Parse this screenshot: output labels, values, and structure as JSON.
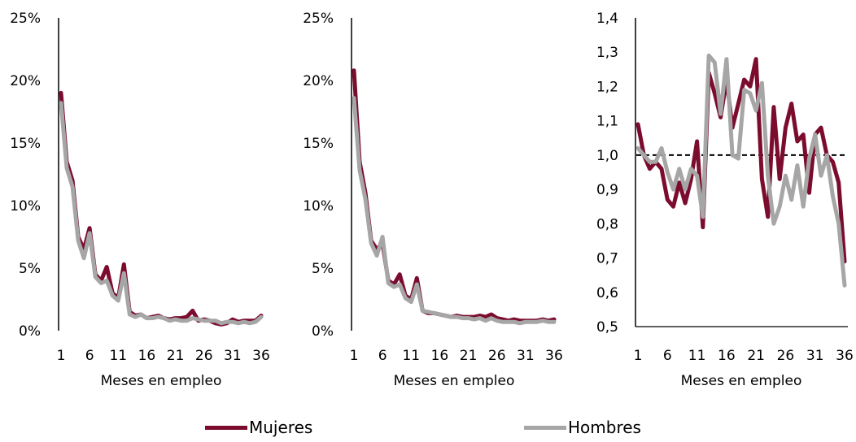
{
  "colors": {
    "mujeres": "#7b0c2e",
    "hombres": "#a6a6a6",
    "axis": "#000000",
    "reference": "#000000"
  },
  "legend": [
    {
      "name": "Mujeres",
      "color": "#7b0c2e"
    },
    {
      "name": "Hombres",
      "color": "#a6a6a6"
    }
  ],
  "chart_data": [
    {
      "type": "line",
      "xlabel": "Meses en empleo",
      "ylabel": "",
      "title": "",
      "x": [
        1,
        2,
        3,
        4,
        5,
        6,
        7,
        8,
        9,
        10,
        11,
        12,
        13,
        14,
        15,
        16,
        17,
        18,
        19,
        20,
        21,
        22,
        23,
        24,
        25,
        26,
        27,
        28,
        29,
        30,
        31,
        32,
        33,
        34,
        35,
        36
      ],
      "xticks": [
        "1",
        "6",
        "11",
        "16",
        "21",
        "26",
        "31",
        "36"
      ],
      "yticks": [
        "0%",
        "5%",
        "10%",
        "15%",
        "20%",
        "25%"
      ],
      "ylim": [
        0,
        25
      ],
      "grid": false,
      "series": [
        {
          "name": "Mujeres",
          "values": [
            19.0,
            13.5,
            12.0,
            7.5,
            6.5,
            8.2,
            4.5,
            4.0,
            5.1,
            3.0,
            2.6,
            5.3,
            1.5,
            1.2,
            1.3,
            1.0,
            1.1,
            1.2,
            1.0,
            0.9,
            1.0,
            1.0,
            1.1,
            1.6,
            0.8,
            0.9,
            0.8,
            0.6,
            0.5,
            0.6,
            0.9,
            0.7,
            0.8,
            0.8,
            0.8,
            1.2
          ]
        },
        {
          "name": "Hombres",
          "values": [
            18.2,
            13.0,
            11.5,
            7.2,
            5.8,
            7.8,
            4.3,
            3.8,
            4.0,
            2.8,
            2.4,
            4.6,
            1.3,
            1.1,
            1.3,
            1.0,
            1.0,
            1.1,
            1.0,
            0.8,
            0.9,
            0.8,
            0.8,
            1.0,
            0.9,
            0.8,
            0.8,
            0.8,
            0.6,
            0.7,
            0.7,
            0.6,
            0.7,
            0.6,
            0.7,
            1.1
          ]
        }
      ]
    },
    {
      "type": "line",
      "xlabel": "Meses en empleo",
      "ylabel": "",
      "title": "",
      "x": [
        1,
        2,
        3,
        4,
        5,
        6,
        7,
        8,
        9,
        10,
        11,
        12,
        13,
        14,
        15,
        16,
        17,
        18,
        19,
        20,
        21,
        22,
        23,
        24,
        25,
        26,
        27,
        28,
        29,
        30,
        31,
        32,
        33,
        34,
        35,
        36
      ],
      "xticks": [
        "1",
        "6",
        "11",
        "16",
        "21",
        "26",
        "31",
        "36"
      ],
      "yticks": [
        "0%",
        "5%",
        "10%",
        "15%",
        "20%",
        "25%"
      ],
      "ylim": [
        0,
        25
      ],
      "grid": false,
      "series": [
        {
          "name": "Mujeres",
          "values": [
            20.8,
            13.5,
            11.0,
            7.2,
            6.5,
            7.0,
            4.0,
            3.7,
            4.5,
            2.8,
            2.5,
            4.2,
            1.6,
            1.4,
            1.4,
            1.3,
            1.2,
            1.1,
            1.2,
            1.1,
            1.1,
            1.1,
            1.2,
            1.1,
            1.3,
            1.0,
            0.9,
            0.8,
            0.9,
            0.8,
            0.8,
            0.8,
            0.8,
            0.9,
            0.8,
            0.9
          ]
        },
        {
          "name": "Hombres",
          "values": [
            18.6,
            12.8,
            10.5,
            7.0,
            6.0,
            7.5,
            3.8,
            3.5,
            3.7,
            2.6,
            2.3,
            3.7,
            1.6,
            1.5,
            1.4,
            1.3,
            1.2,
            1.1,
            1.1,
            1.0,
            1.0,
            0.9,
            1.0,
            0.8,
            1.0,
            0.8,
            0.7,
            0.7,
            0.7,
            0.6,
            0.7,
            0.7,
            0.7,
            0.8,
            0.7,
            0.7
          ]
        }
      ]
    },
    {
      "type": "line",
      "xlabel": "Meses en empleo",
      "ylabel": "",
      "title": "",
      "x": [
        1,
        2,
        3,
        4,
        5,
        6,
        7,
        8,
        9,
        10,
        11,
        12,
        13,
        14,
        15,
        16,
        17,
        18,
        19,
        20,
        21,
        22,
        23,
        24,
        25,
        26,
        27,
        28,
        29,
        30,
        31,
        32,
        33,
        34,
        35,
        36
      ],
      "xticks": [
        "1",
        "6",
        "11",
        "16",
        "21",
        "26",
        "31",
        "36"
      ],
      "yticks": [
        "0,5",
        "0,6",
        "0,7",
        "0,8",
        "0,9",
        "1,0",
        "1,1",
        "1,2",
        "1,3",
        "1,4"
      ],
      "ylim": [
        0.5,
        1.4
      ],
      "grid": false,
      "reference_line": 1.0,
      "series": [
        {
          "name": "Mujeres",
          "values": [
            1.09,
            1.0,
            0.96,
            0.98,
            0.96,
            0.87,
            0.85,
            0.92,
            0.86,
            0.93,
            1.04,
            0.79,
            1.24,
            1.18,
            1.11,
            1.22,
            1.08,
            1.15,
            1.22,
            1.2,
            1.28,
            0.93,
            0.82,
            1.14,
            0.93,
            1.08,
            1.15,
            1.04,
            1.06,
            0.89,
            1.06,
            1.08,
            1.0,
            0.98,
            0.92,
            0.69
          ]
        },
        {
          "name": "Hombres",
          "values": [
            1.02,
            1.0,
            0.98,
            0.98,
            1.02,
            0.95,
            0.9,
            0.96,
            0.9,
            0.96,
            0.94,
            0.82,
            1.29,
            1.27,
            1.12,
            1.28,
            1.0,
            0.99,
            1.19,
            1.18,
            1.13,
            1.21,
            0.94,
            0.8,
            0.85,
            0.94,
            0.87,
            0.97,
            0.85,
            0.99,
            1.06,
            0.94,
            1.0,
            0.88,
            0.8,
            0.62
          ]
        }
      ]
    }
  ]
}
